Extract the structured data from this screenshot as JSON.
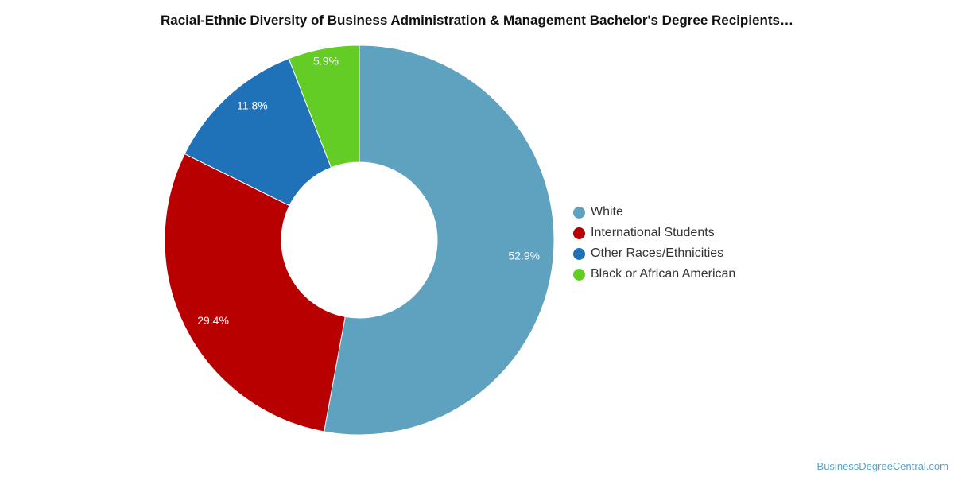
{
  "title": "Racial-Ethnic Diversity of Business Administration & Management Bachelor's Degree Recipients…",
  "footer": "BusinessDegreeCentral.com",
  "chart_data": {
    "type": "pie",
    "donut": true,
    "legend_position": "right",
    "categories": [
      "White",
      "International Students",
      "Other Races/Ethnicities",
      "Black or African American"
    ],
    "values": [
      52.9,
      29.4,
      11.8,
      5.9
    ],
    "labels": [
      "52.9%",
      "29.4%",
      "11.8%",
      "5.9%"
    ],
    "colors": [
      "#5ea2bf",
      "#b80000",
      "#1f72b8",
      "#63cd26"
    ]
  }
}
